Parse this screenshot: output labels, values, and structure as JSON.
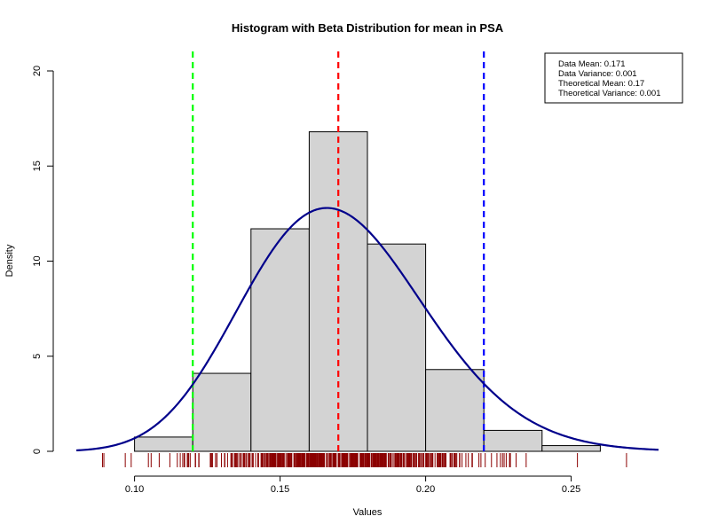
{
  "chart_data": {
    "type": "bar",
    "title": "Histogram with Beta Distribution for mean in PSA",
    "xlabel": "Values",
    "ylabel": "Density",
    "xlim": [
      0.08,
      0.28
    ],
    "ylim": [
      0,
      20
    ],
    "x_ticks": [
      {
        "value": 0.1,
        "label": "0.10"
      },
      {
        "value": 0.15,
        "label": "0.15"
      },
      {
        "value": 0.2,
        "label": "0.20"
      },
      {
        "value": 0.25,
        "label": "0.25"
      }
    ],
    "y_ticks": [
      {
        "value": 0,
        "label": "0"
      },
      {
        "value": 5,
        "label": "5"
      },
      {
        "value": 10,
        "label": "10"
      },
      {
        "value": 15,
        "label": "15"
      },
      {
        "value": 20,
        "label": "20"
      }
    ],
    "bins": [
      {
        "x0": 0.1,
        "x1": 0.12,
        "density": 0.75
      },
      {
        "x0": 0.12,
        "x1": 0.14,
        "density": 4.1
      },
      {
        "x0": 0.14,
        "x1": 0.16,
        "density": 11.7
      },
      {
        "x0": 0.16,
        "x1": 0.18,
        "density": 16.8
      },
      {
        "x0": 0.18,
        "x1": 0.2,
        "density": 10.9
      },
      {
        "x0": 0.2,
        "x1": 0.22,
        "density": 4.3
      },
      {
        "x0": 0.22,
        "x1": 0.24,
        "density": 1.1
      },
      {
        "x0": 0.24,
        "x1": 0.26,
        "density": 0.3
      }
    ],
    "density_curve": {
      "alpha": 24.5,
      "beta": 119,
      "color": "#00008b"
    },
    "vlines": [
      {
        "x": 0.12,
        "color": "#00ff00"
      },
      {
        "x": 0.17,
        "color": "#ff0000"
      },
      {
        "x": 0.22,
        "color": "#0000ff"
      }
    ],
    "rug": {
      "color": "#8b0000",
      "min": 0.089,
      "max": 0.269,
      "count": 500,
      "mean": 0.17,
      "sd": 0.025
    },
    "legend": {
      "position": "top-right",
      "entries": [
        "Data Mean:  0.171",
        "Data Variance:  0.001",
        "Theoretical Mean:  0.17",
        "Theoretical Variance:  0.001"
      ]
    },
    "colors": {
      "bar_fill": "#d3d3d3",
      "bar_stroke": "#000000"
    }
  }
}
